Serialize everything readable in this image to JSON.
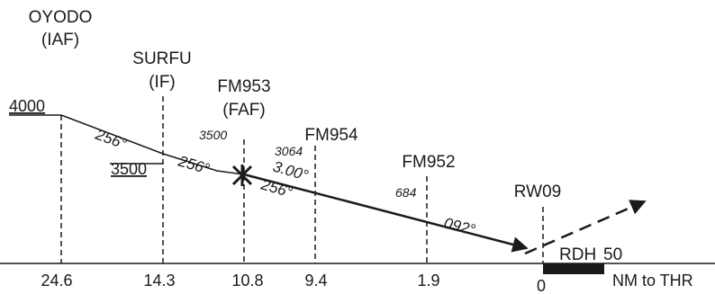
{
  "fixes": [
    {
      "name": "OYODO",
      "role": "(IAF)",
      "distance": "24.6"
    },
    {
      "name": "SURFU",
      "role": "(IF)",
      "distance": "14.3"
    },
    {
      "name": "FM953",
      "role": "(FAF)",
      "distance": "10.8",
      "altitude": "3500"
    },
    {
      "name": "FM954",
      "role": "",
      "distance": "9.4",
      "altitude": "3064"
    },
    {
      "name": "FM952",
      "role": "",
      "distance": "1.9",
      "altitude": "684"
    },
    {
      "name": "RW09",
      "role": "",
      "distance": "0"
    }
  ],
  "altitudes": {
    "oyodo": "4000",
    "surfu": "3500"
  },
  "tracks": {
    "oyodo_surfu": "256°",
    "surfu_fm953": "256°",
    "final": "256°",
    "glidepath": "3.00°",
    "missed": "092°"
  },
  "rdh": {
    "label": "RDH",
    "value": "50"
  },
  "axis_label": "NM to THR",
  "colors": {
    "line": "#1a1a1a",
    "background": "#ffffff"
  }
}
